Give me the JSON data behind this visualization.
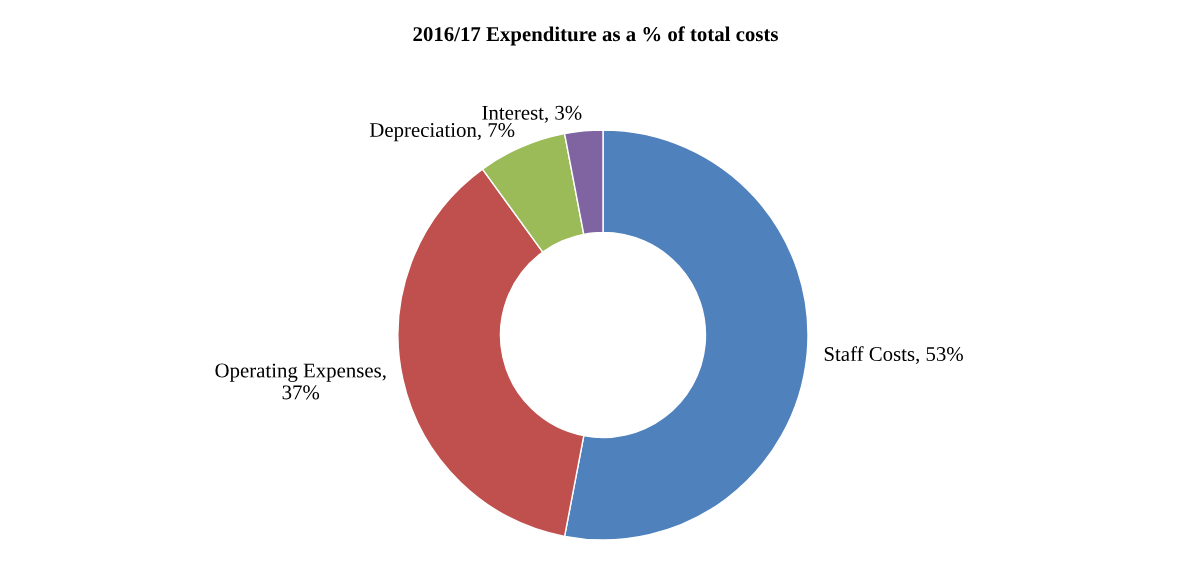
{
  "chart_data": {
    "type": "donut",
    "title": "2016/17 Expenditure as a % of total costs",
    "categories": [
      "Staff Costs, 53%",
      "Operating Expenses,\n37%",
      "Depreciation, 7%",
      "Interest, 3%"
    ],
    "values": [
      53,
      37,
      7,
      3
    ],
    "colors": [
      "#4f81bd",
      "#c0504d",
      "#9bbb59",
      "#8064a2"
    ],
    "legend": false
  }
}
